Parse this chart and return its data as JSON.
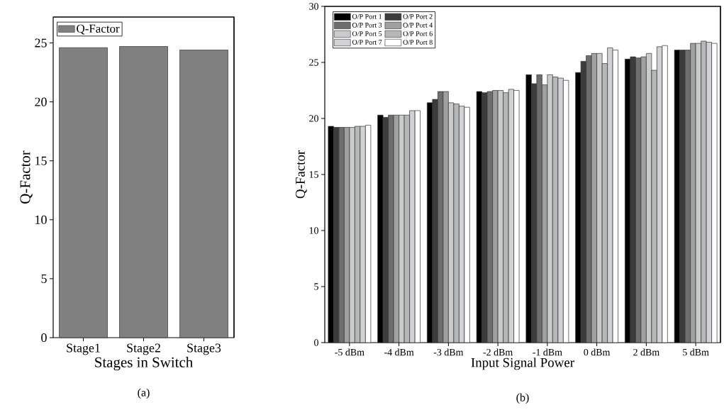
{
  "chart_data": [
    {
      "type": "bar",
      "xlabel": "Stages in Switch",
      "ylabel": "Q-Factor",
      "categories": [
        "Stage1",
        "Stage2",
        "Stage3"
      ],
      "series": [
        {
          "name": "Q-Factor",
          "color": "#808080",
          "values": [
            24.6,
            24.7,
            24.4
          ]
        }
      ],
      "ylim": [
        0,
        27.2
      ],
      "yticks": [
        0,
        5,
        10,
        15,
        20,
        25
      ],
      "legend": "top left",
      "grid": false,
      "annotations": [
        "(a)"
      ]
    },
    {
      "type": "bar",
      "xlabel": "Input Signal Power",
      "ylabel": "Q-Factor",
      "categories": [
        "-5 dBm",
        "-4 dBm",
        "-3 dBm",
        "-2 dBm",
        "-1 dBm",
        "0 dBm",
        "2 dBm",
        "5 dBm"
      ],
      "series": [
        {
          "name": "O/P Port 1",
          "color": "#000000",
          "values": [
            19.3,
            20.3,
            21.4,
            22.4,
            23.9,
            24.1,
            25.3,
            26.1
          ]
        },
        {
          "name": "O/P Port 2",
          "color": "#3c3c3c",
          "values": [
            19.2,
            20.1,
            21.7,
            22.3,
            23.1,
            25.1,
            25.5,
            26.1
          ]
        },
        {
          "name": "O/P Port 3",
          "color": "#6e6e6e",
          "values": [
            19.2,
            20.3,
            22.4,
            22.4,
            23.9,
            25.6,
            25.4,
            26.1
          ]
        },
        {
          "name": "O/P Port 4",
          "color": "#a0a0a0",
          "values": [
            19.2,
            20.3,
            22.4,
            22.5,
            23.0,
            25.8,
            25.5,
            26.7
          ]
        },
        {
          "name": "O/P Port 5",
          "color": "#cacccb",
          "values": [
            19.2,
            20.3,
            21.4,
            22.5,
            23.9,
            25.8,
            25.8,
            26.7
          ]
        },
        {
          "name": "O/P Port 6",
          "color": "#b4b8b6",
          "values": [
            19.3,
            20.3,
            21.3,
            22.3,
            23.7,
            24.9,
            24.3,
            26.9
          ]
        },
        {
          "name": "O/P Port 7",
          "color": "#d2d2d6",
          "values": [
            19.3,
            20.7,
            21.1,
            22.6,
            23.6,
            26.3,
            26.4,
            26.8
          ]
        },
        {
          "name": "O/P Port 8",
          "color": "#ffffff",
          "values": [
            19.4,
            20.7,
            21.0,
            22.5,
            23.4,
            26.1,
            26.5,
            26.7
          ]
        }
      ],
      "ylim": [
        0,
        30
      ],
      "yticks": [
        0,
        5,
        10,
        15,
        20,
        25,
        30
      ],
      "legend": "top left",
      "grid": false,
      "annotations": [
        "(b)"
      ]
    }
  ]
}
